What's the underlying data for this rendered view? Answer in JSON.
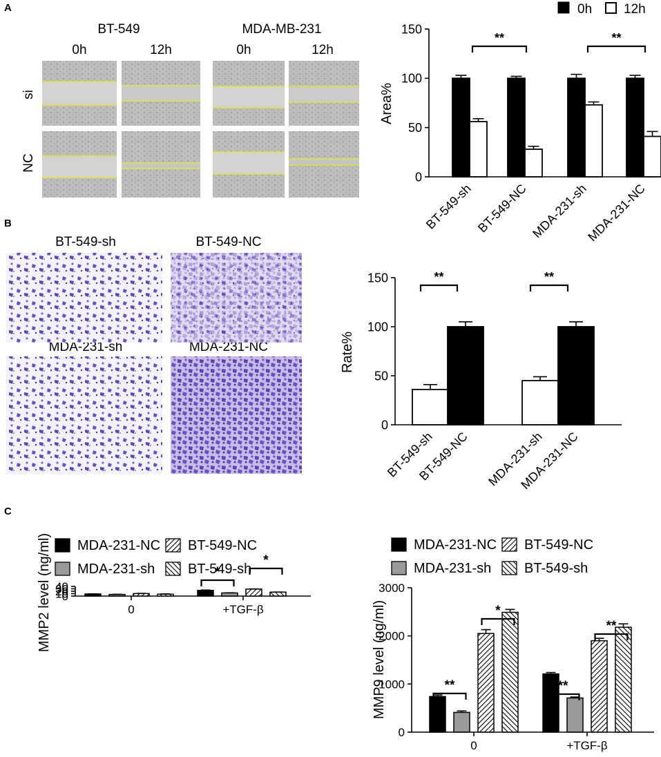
{
  "panel_letters": [
    "A",
    "B",
    "C"
  ],
  "colors": {
    "black": "#000000",
    "white": "#ffffff",
    "gray": "#9a9a9a",
    "scratch_bg": "#bcbcbc",
    "scratch_line": "#e6e62a",
    "crystal_violet": "#6a4fc0"
  },
  "micrographs_a": {
    "col_groups": [
      "BT-549",
      "MDA-MB-231"
    ],
    "timepoints": [
      "0h",
      "12h",
      "0h",
      "12h"
    ],
    "rows": [
      "si",
      "NC"
    ]
  },
  "micrographs_b": {
    "labels": [
      "BT-549-sh",
      "BT-549-NC",
      "MDA-231-sh",
      "MDA-231-NC"
    ]
  },
  "chart_data": [
    {
      "id": "A_area",
      "type": "bar",
      "ylabel": "Area%",
      "ylim": [
        0,
        150
      ],
      "yticks": [
        0,
        50,
        100,
        150
      ],
      "categories": [
        "BT-549-sh",
        "BT-549-NC",
        "MDA-231-sh",
        "MDA-231-NC"
      ],
      "legend": {
        "position": "top",
        "entries": [
          "0h",
          "12h"
        ]
      },
      "series": [
        {
          "name": "0h",
          "fill": "black",
          "values": [
            100,
            100,
            100,
            100
          ],
          "errors": [
            3,
            2,
            4,
            3
          ]
        },
        {
          "name": "12h",
          "fill": "white",
          "values": [
            56,
            28,
            73,
            41
          ],
          "errors": [
            3,
            3,
            3,
            5
          ]
        }
      ],
      "significance": [
        {
          "label": "**",
          "from_bar": [
            0,
            1
          ],
          "to_bar": [
            1,
            1
          ]
        },
        {
          "label": "**",
          "from_bar": [
            2,
            1
          ],
          "to_bar": [
            3,
            1
          ]
        }
      ]
    },
    {
      "id": "B_rate",
      "type": "bar",
      "ylabel": "Rate%",
      "ylim": [
        0,
        150
      ],
      "yticks": [
        0,
        50,
        100,
        150
      ],
      "categories": [
        "BT-549-sh",
        "BT-549-NC",
        "MDA-231-sh",
        "MDA-231-NC"
      ],
      "bars": [
        {
          "value": 36,
          "error": 5,
          "fill": "white"
        },
        {
          "value": 100,
          "error": 5,
          "fill": "black"
        },
        {
          "value": 45,
          "error": 4,
          "fill": "white"
        },
        {
          "value": 100,
          "error": 5,
          "fill": "black"
        }
      ],
      "significance": [
        {
          "label": "**",
          "from_bar": 0,
          "to_bar": 1
        },
        {
          "label": "**",
          "from_bar": 2,
          "to_bar": 3
        }
      ]
    },
    {
      "id": "C_mmp2",
      "type": "bar",
      "ylabel": "MMP2 level (ng/ml)",
      "ylim": [
        0,
        40
      ],
      "yticks": [
        0,
        10,
        20,
        30,
        40
      ],
      "categories": [
        "0",
        "+TGF-β"
      ],
      "legend": {
        "position": "top",
        "entries": [
          "MDA-231-NC",
          "BT-549-NC",
          "MDA-231-sh",
          "BT-549-sh"
        ]
      },
      "series": [
        {
          "name": "MDA-231-NC",
          "fill": "black",
          "values": [
            8.6,
            23.5
          ],
          "errors": [
            0.6,
            1.5
          ]
        },
        {
          "name": "MDA-231-sh",
          "fill": "gray",
          "values": [
            6.7,
            13.0
          ],
          "errors": [
            0.8,
            0.6
          ]
        },
        {
          "name": "BT-549-NC",
          "fill": "hatch-fwd",
          "values": [
            10.4,
            28.8
          ],
          "errors": [
            0.6,
            0.7
          ]
        },
        {
          "name": "BT-549-sh",
          "fill": "hatch-back",
          "values": [
            7.9,
            16.3
          ],
          "errors": [
            1.0,
            0.4
          ]
        }
      ],
      "significance": [
        {
          "label": "*",
          "from_bar": [
            1,
            0
          ],
          "to_bar": [
            1,
            1
          ]
        },
        {
          "label": "*",
          "from_bar": [
            1,
            2
          ],
          "to_bar": [
            1,
            3
          ]
        }
      ]
    },
    {
      "id": "C_mmp9",
      "type": "bar",
      "ylabel": "MMP9 level (ng/ml)",
      "ylim": [
        0,
        3000
      ],
      "yticks": [
        0,
        1000,
        2000,
        3000
      ],
      "categories": [
        "0",
        "+TGF-β"
      ],
      "legend": {
        "position": "top",
        "entries": [
          "MDA-231-NC",
          "BT-549-NC",
          "MDA-231-sh",
          "BT-549-sh"
        ]
      },
      "series": [
        {
          "name": "MDA-231-NC",
          "fill": "black",
          "values": [
            740,
            1210
          ],
          "errors": [
            30,
            30
          ]
        },
        {
          "name": "MDA-231-sh",
          "fill": "gray",
          "values": [
            410,
            710
          ],
          "errors": [
            30,
            20
          ]
        },
        {
          "name": "BT-549-NC",
          "fill": "hatch-fwd",
          "values": [
            2050,
            1900
          ],
          "errors": [
            80,
            50
          ]
        },
        {
          "name": "BT-549-sh",
          "fill": "hatch-back",
          "values": [
            2490,
            2180
          ],
          "errors": [
            60,
            70
          ]
        }
      ],
      "significance": [
        {
          "label": "**",
          "from_bar": [
            0,
            0
          ],
          "to_bar": [
            0,
            1
          ]
        },
        {
          "label": "*",
          "from_bar": [
            0,
            2
          ],
          "to_bar": [
            0,
            3
          ]
        },
        {
          "label": "**",
          "from_bar": [
            1,
            0
          ],
          "to_bar": [
            1,
            1
          ]
        },
        {
          "label": "**",
          "from_bar": [
            1,
            2
          ],
          "to_bar": [
            1,
            3
          ]
        }
      ]
    }
  ]
}
